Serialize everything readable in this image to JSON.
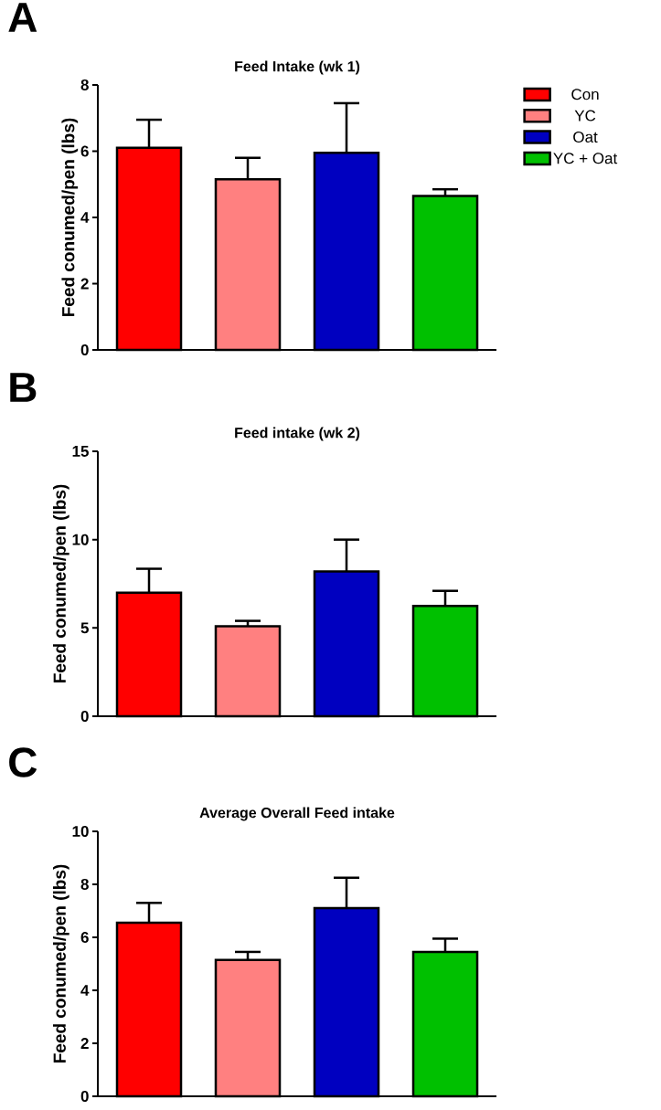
{
  "chart_data": [
    {
      "type": "bar",
      "title": "Feed Intake (wk 1)",
      "ylabel": "Feed conumed/pen (lbs)",
      "annotations": [
        "A"
      ],
      "categories": [
        null
      ],
      "ylim": [
        0,
        8
      ],
      "yticks": [
        0,
        2,
        4,
        6,
        8
      ],
      "legend": "right",
      "series": [
        {
          "name": "Con",
          "color": "#ff0000",
          "values": [
            6.1
          ],
          "errors": [
            0.85
          ]
        },
        {
          "name": "YC",
          "color": "#ff8080",
          "values": [
            5.15
          ],
          "errors": [
            0.65
          ]
        },
        {
          "name": "Oat",
          "color": "#0000c0",
          "values": [
            5.95
          ],
          "errors": [
            1.5
          ]
        },
        {
          "name": "YC + Oat",
          "color": "#00c000",
          "values": [
            4.65
          ],
          "errors": [
            0.2
          ]
        }
      ]
    },
    {
      "type": "bar",
      "title": "Feed intake (wk 2)",
      "ylabel": "Feed conumed/pen (lbs)",
      "annotations": [
        "B"
      ],
      "categories": [
        null
      ],
      "ylim": [
        0,
        15
      ],
      "yticks": [
        0,
        5,
        10,
        15
      ],
      "series": [
        {
          "color": "#ff0000",
          "values": [
            7.0
          ],
          "errors": [
            1.35
          ]
        },
        {
          "color": "#ff8080",
          "values": [
            5.1
          ],
          "errors": [
            0.3
          ]
        },
        {
          "color": "#0000c0",
          "values": [
            8.2
          ],
          "errors": [
            1.8
          ]
        },
        {
          "color": "#00c000",
          "values": [
            6.25
          ],
          "errors": [
            0.85
          ]
        }
      ]
    },
    {
      "type": "bar",
      "title": "Average Overall Feed intake",
      "ylabel": "Feed conumed/pen (lbs)",
      "annotations": [
        "C"
      ],
      "categories": [
        null
      ],
      "ylim": [
        0,
        10
      ],
      "yticks": [
        0,
        2,
        4,
        6,
        8,
        10
      ],
      "series": [
        {
          "color": "#ff0000",
          "values": [
            6.55
          ],
          "errors": [
            0.75
          ]
        },
        {
          "color": "#ff8080",
          "values": [
            5.15
          ],
          "errors": [
            0.3
          ]
        },
        {
          "color": "#0000c0",
          "values": [
            7.1
          ],
          "errors": [
            1.15
          ]
        },
        {
          "color": "#00c000",
          "values": [
            5.45
          ],
          "errors": [
            0.5
          ]
        }
      ]
    }
  ]
}
